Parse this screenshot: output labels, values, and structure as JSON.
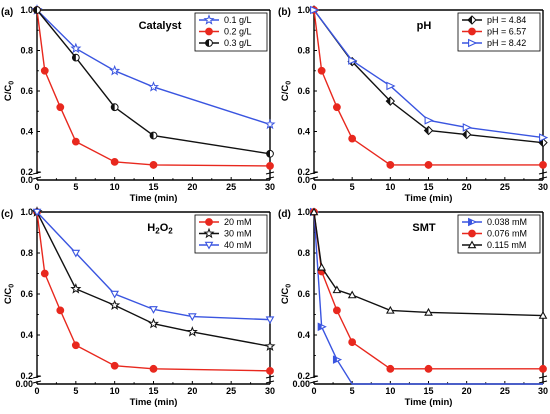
{
  "chart_data": [
    {
      "type": "line",
      "panel_label": "(a)",
      "title": "Catalyst",
      "title_parts": [
        {
          "text": "Catalyst",
          "sub": ""
        }
      ],
      "xlabel": "Time (min)",
      "ylabel": "C/C",
      "ylabel_sub": "0",
      "xlim": [
        0,
        30
      ],
      "ylim": [
        0,
        1.0
      ],
      "axis_break": [
        0.02,
        0.2
      ],
      "x_ticks": [
        0,
        5,
        10,
        15,
        20,
        25,
        30
      ],
      "y_ticks": [
        0.0,
        0.2,
        0.4,
        0.6,
        0.8,
        1.0
      ],
      "legend_position": "top-right",
      "series": [
        {
          "name": "0.1 g/L",
          "color": "#3a55e0",
          "marker": "star",
          "x": [
            0,
            5,
            10,
            15,
            30
          ],
          "y": [
            1.0,
            0.81,
            0.7,
            0.62,
            0.435
          ]
        },
        {
          "name": "0.2 g/L",
          "color": "#e8281e",
          "marker": "circle",
          "x": [
            0,
            1,
            3,
            5,
            10,
            15,
            30
          ],
          "y": [
            1.0,
            0.7,
            0.52,
            0.35,
            0.25,
            0.235,
            0.23
          ]
        },
        {
          "name": "0.3 g/L",
          "color": "#111111",
          "marker": "circle-half",
          "x": [
            0,
            5,
            10,
            15,
            30
          ],
          "y": [
            1.0,
            0.765,
            0.52,
            0.38,
            0.29
          ]
        }
      ]
    },
    {
      "type": "line",
      "panel_label": "(b)",
      "title": "pH",
      "title_parts": [
        {
          "text": "pH",
          "sub": ""
        }
      ],
      "xlabel": "Time (min)",
      "ylabel": "C/C",
      "ylabel_sub": "0",
      "xlim": [
        0,
        30
      ],
      "ylim": [
        0,
        1.0
      ],
      "axis_break": [
        0.02,
        0.2
      ],
      "x_ticks": [
        0,
        5,
        10,
        15,
        20,
        25,
        30
      ],
      "y_ticks": [
        0.0,
        0.2,
        0.4,
        0.6,
        0.8,
        1.0
      ],
      "legend_position": "top-right",
      "series": [
        {
          "name": "pH = 4.84",
          "color": "#111111",
          "marker": "diamond-half",
          "x": [
            0,
            5,
            10,
            15,
            20,
            30
          ],
          "y": [
            1.0,
            0.745,
            0.55,
            0.405,
            0.385,
            0.345
          ]
        },
        {
          "name": "pH = 6.57",
          "color": "#e8281e",
          "marker": "circle",
          "x": [
            0,
            1,
            3,
            5,
            10,
            15,
            30
          ],
          "y": [
            1.0,
            0.7,
            0.52,
            0.365,
            0.235,
            0.235,
            0.235
          ]
        },
        {
          "name": "pH = 8.42",
          "color": "#3a55e0",
          "marker": "triangle-right",
          "x": [
            0,
            5,
            10,
            15,
            20,
            30
          ],
          "y": [
            1.0,
            0.75,
            0.625,
            0.455,
            0.42,
            0.37
          ]
        }
      ]
    },
    {
      "type": "line",
      "panel_label": "(c)",
      "title": "H2O2",
      "title_parts": [
        {
          "text": "H",
          "sub": "2"
        },
        {
          "text": "O",
          "sub": "2"
        }
      ],
      "xlabel": "Time (min)",
      "ylabel": "C/C",
      "ylabel_sub": "0",
      "xlim": [
        0,
        30
      ],
      "ylim": [
        0,
        1.0
      ],
      "axis_break": [
        0.02,
        0.2
      ],
      "x_ticks": [
        0,
        5,
        10,
        15,
        20,
        25,
        30
      ],
      "y_ticks": [
        0.0,
        0.2,
        0.4,
        0.6,
        0.8,
        1.0
      ],
      "legend_position": "top-right",
      "series": [
        {
          "name": "20 mM",
          "color": "#e8281e",
          "marker": "circle",
          "x": [
            0,
            1,
            3,
            5,
            10,
            15,
            30
          ],
          "y": [
            1.0,
            0.7,
            0.52,
            0.35,
            0.25,
            0.235,
            0.225
          ]
        },
        {
          "name": "30 mM",
          "color": "#111111",
          "marker": "star",
          "x": [
            0,
            5,
            10,
            15,
            20,
            30
          ],
          "y": [
            1.0,
            0.625,
            0.545,
            0.455,
            0.415,
            0.345
          ]
        },
        {
          "name": "40 mM",
          "color": "#3a55e0",
          "marker": "triangle-down",
          "x": [
            0,
            5,
            10,
            15,
            20,
            30
          ],
          "y": [
            1.0,
            0.8,
            0.6,
            0.525,
            0.49,
            0.475
          ]
        }
      ]
    },
    {
      "type": "line",
      "panel_label": "(d)",
      "title": "SMT",
      "title_parts": [
        {
          "text": "SMT",
          "sub": ""
        }
      ],
      "xlabel": "Time (min)",
      "ylabel": "C/C",
      "ylabel_sub": "0",
      "xlim": [
        0,
        30
      ],
      "ylim": [
        0,
        1.0
      ],
      "axis_break": [
        0.02,
        0.2
      ],
      "x_ticks": [
        0,
        5,
        10,
        15,
        20,
        25,
        30
      ],
      "y_ticks": [
        0.0,
        0.2,
        0.4,
        0.6,
        0.8,
        1.0
      ],
      "legend_position": "top-right",
      "series": [
        {
          "name": "0.038 mM",
          "color": "#3a55e0",
          "marker": "triangle-right-half",
          "x": [
            0,
            1,
            3,
            5,
            10,
            15,
            30
          ],
          "y": [
            1.0,
            0.44,
            0.28,
            0.0,
            0.0,
            0.0,
            0.0
          ]
        },
        {
          "name": "0.076 mM",
          "color": "#e8281e",
          "marker": "circle",
          "x": [
            0,
            1,
            3,
            5,
            10,
            15,
            30
          ],
          "y": [
            1.0,
            0.71,
            0.52,
            0.365,
            0.235,
            0.235,
            0.235
          ]
        },
        {
          "name": "0.115 mM",
          "color": "#111111",
          "marker": "triangle-up",
          "x": [
            0,
            1,
            3,
            5,
            10,
            15,
            30
          ],
          "y": [
            1.0,
            0.73,
            0.62,
            0.595,
            0.52,
            0.51,
            0.495
          ]
        }
      ]
    }
  ]
}
